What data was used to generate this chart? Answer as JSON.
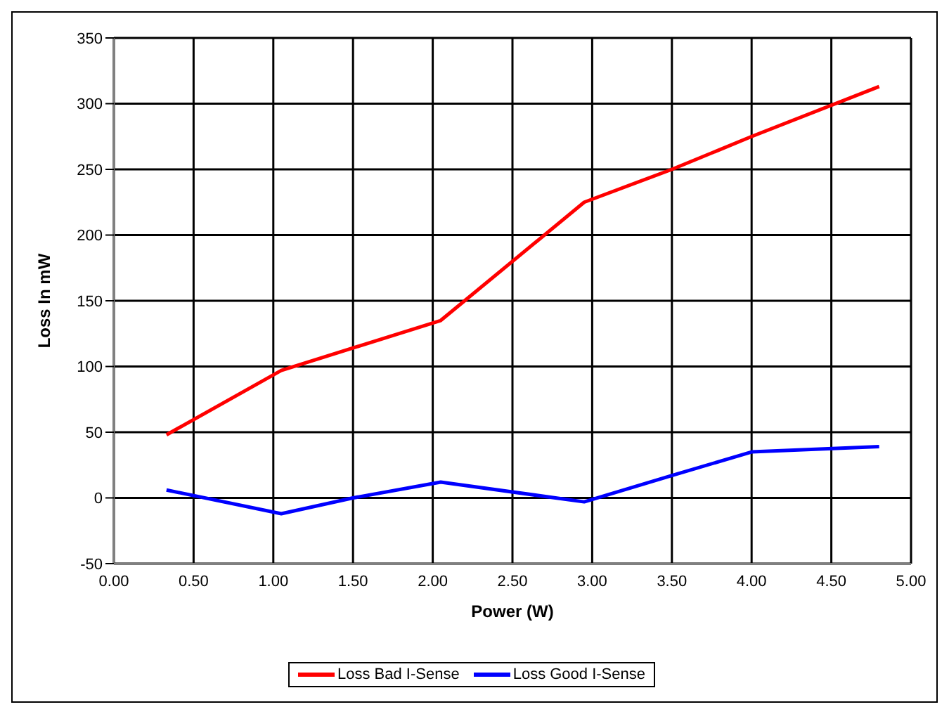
{
  "chart_data": {
    "type": "line",
    "xlabel": "Power (W)",
    "ylabel": "Loss In mW",
    "xlim": [
      0,
      5
    ],
    "xticks": [
      {
        "value": 0,
        "label": "0.00"
      },
      {
        "value": 0.5,
        "label": "0.50"
      },
      {
        "value": 1,
        "label": "1.00"
      },
      {
        "value": 1.5,
        "label": "1.50"
      },
      {
        "value": 2,
        "label": "2.00"
      },
      {
        "value": 2.5,
        "label": "2.50"
      },
      {
        "value": 3,
        "label": "3.00"
      },
      {
        "value": 3.5,
        "label": "3.50"
      },
      {
        "value": 4,
        "label": "4.00"
      },
      {
        "value": 4.5,
        "label": "4.50"
      },
      {
        "value": 5,
        "label": "5.00"
      }
    ],
    "ylim": [
      -50,
      350
    ],
    "yticks": [
      -50,
      0,
      50,
      100,
      150,
      200,
      250,
      300,
      350
    ],
    "grid": true,
    "legend": "bottom",
    "marker": "none",
    "line_style": "solid",
    "series": [
      {
        "name": "Loss Bad I-Sense",
        "color": "#ff0000",
        "x": [
          0.33,
          1.05,
          2.05,
          2.95,
          3.5,
          4.0,
          4.8
        ],
        "values": [
          48,
          97,
          135,
          225,
          250,
          275,
          313
        ]
      },
      {
        "name": "Loss Good I-Sense",
        "color": "#0000ff",
        "x": [
          0.33,
          1.05,
          1.5,
          2.05,
          2.95,
          3.5,
          4.0,
          4.8
        ],
        "values": [
          6,
          -12,
          0,
          12,
          -3,
          17,
          35,
          39
        ]
      }
    ]
  }
}
